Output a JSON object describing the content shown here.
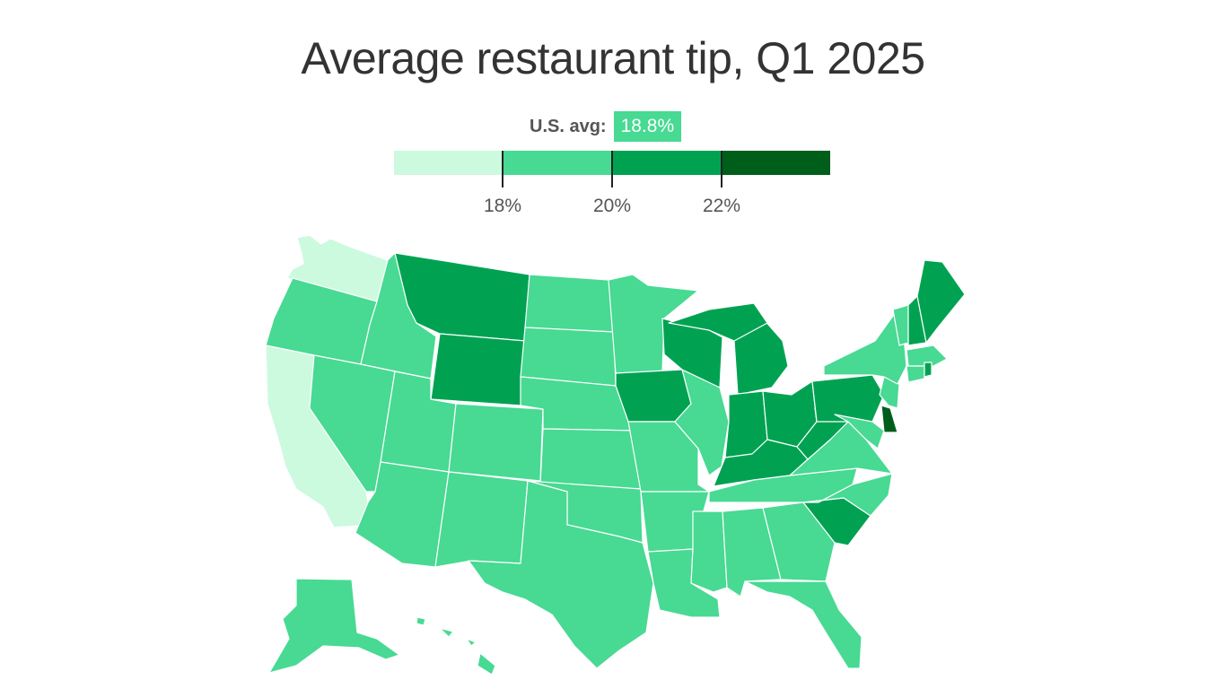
{
  "title": "Average restaurant tip, Q1 2025",
  "us_avg": {
    "label": "U.S. avg:",
    "value": "18.8%"
  },
  "legend": {
    "colors": [
      "#ccfade",
      "#48d993",
      "#00a252",
      "#005e1b"
    ],
    "ticks": [
      "18%",
      "20%",
      "22%"
    ]
  },
  "chart_data": {
    "type": "choropleth",
    "title": "Average restaurant tip, Q1 2025",
    "reference": {
      "label": "U.S. avg",
      "value": 18.8,
      "unit": "%"
    },
    "bins": [
      {
        "range": "<18%",
        "color": "#ccfade"
      },
      {
        "range": "18%-20%",
        "color": "#48d993"
      },
      {
        "range": "20%-22%",
        "color": "#00a252"
      },
      {
        "range": ">22%",
        "color": "#005e1b"
      }
    ],
    "states": {
      "WA": "<18%",
      "CA": "<18%",
      "OR": "18%-20%",
      "ID": "18%-20%",
      "NV": "18%-20%",
      "UT": "18%-20%",
      "AZ": "18%-20%",
      "CO": "18%-20%",
      "NM": "18%-20%",
      "ND": "18%-20%",
      "SD": "18%-20%",
      "NE": "18%-20%",
      "KS": "18%-20%",
      "OK": "18%-20%",
      "TX": "18%-20%",
      "MN": "18%-20%",
      "MO": "18%-20%",
      "AR": "18%-20%",
      "LA": "18%-20%",
      "IL": "18%-20%",
      "MS": "18%-20%",
      "AL": "18%-20%",
      "TN": "18%-20%",
      "GA": "18%-20%",
      "FL": "18%-20%",
      "NC": "18%-20%",
      "VA": "18%-20%",
      "MD": "18%-20%",
      "NJ": "18%-20%",
      "NY": "18%-20%",
      "VT": "18%-20%",
      "MA": "18%-20%",
      "CT": "18%-20%",
      "AK": "18%-20%",
      "HI": "18%-20%",
      "MT": "20%-22%",
      "WY": "20%-22%",
      "IA": "20%-22%",
      "WI": "20%-22%",
      "MI": "20%-22%",
      "IN": "20%-22%",
      "OH": "20%-22%",
      "KY": "20%-22%",
      "WV": "20%-22%",
      "PA": "20%-22%",
      "SC": "20%-22%",
      "NH": "20%-22%",
      "ME": "20%-22%",
      "RI": "20%-22%",
      "DE": ">22%"
    }
  }
}
